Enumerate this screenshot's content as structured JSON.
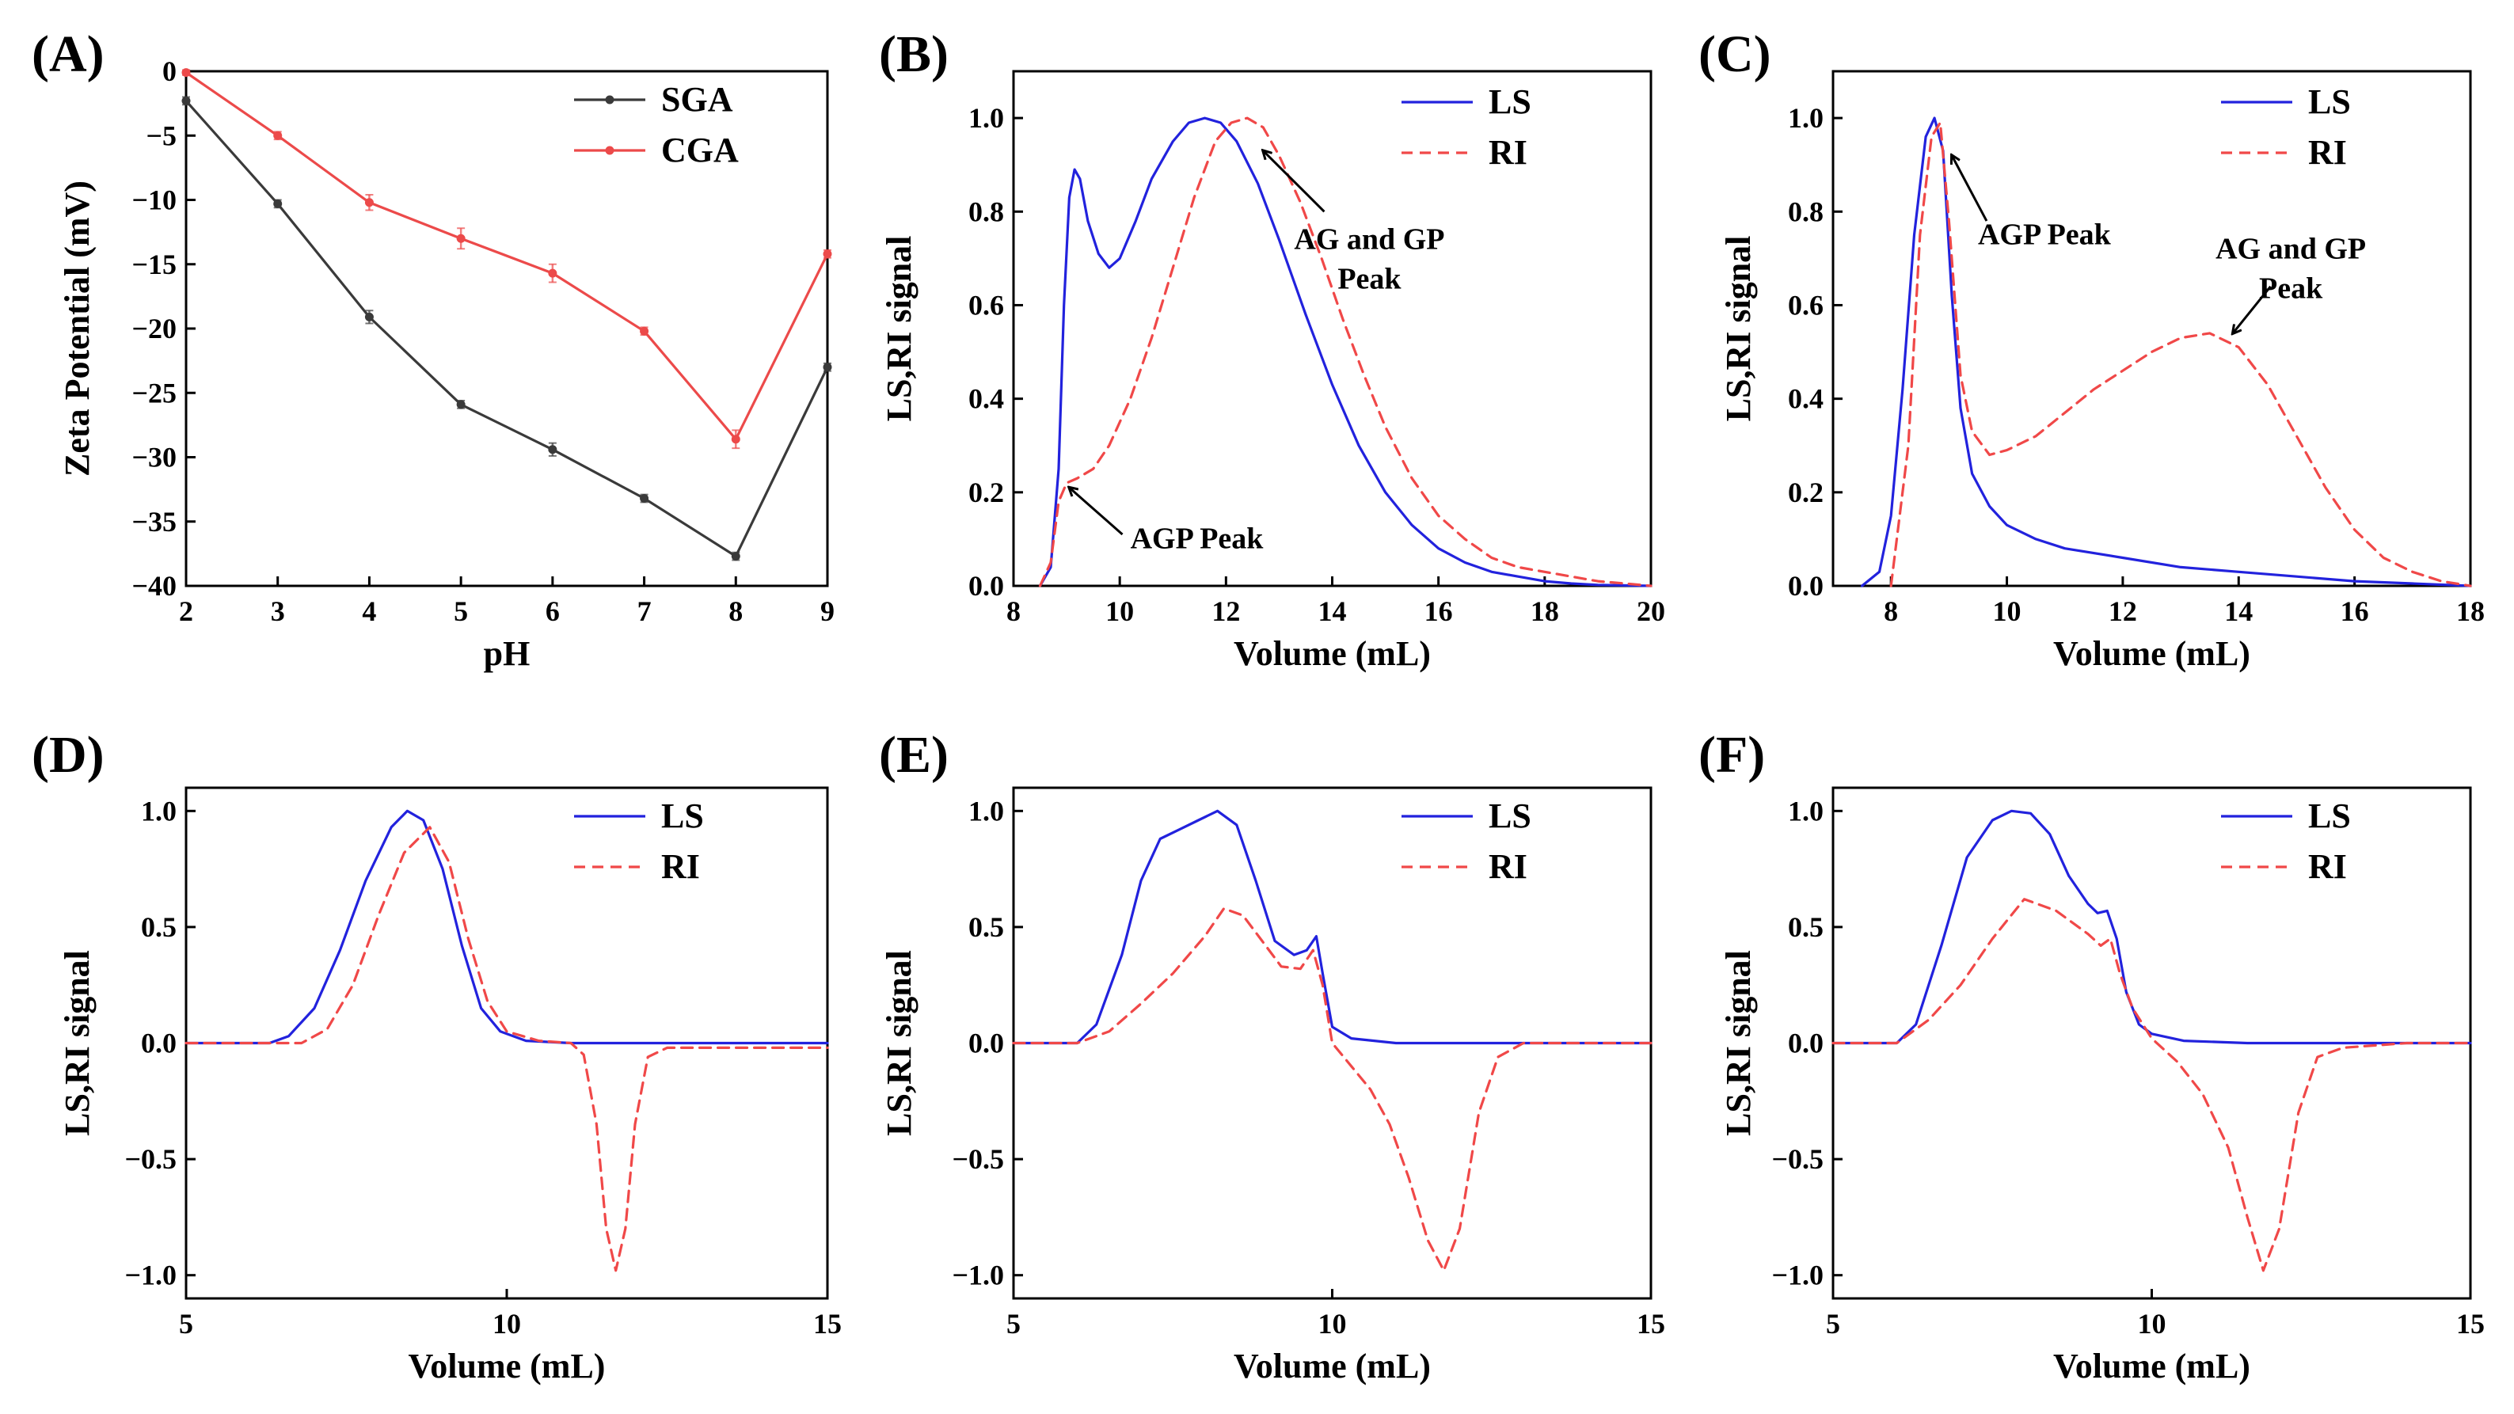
{
  "colors": {
    "sga": "#3a3a3a",
    "cga": "#ec4a4a",
    "ls": "#2222dd",
    "ri": "#f04848",
    "axis": "#000000"
  },
  "chart_data": [
    {
      "id": "A",
      "label": "(A)",
      "type": "line",
      "xlabel": "pH",
      "ylabel": "Zeta Potential (mV)",
      "xlim": [
        2,
        9
      ],
      "ylim": [
        -40,
        0
      ],
      "xticks": [
        2,
        3,
        4,
        5,
        6,
        7,
        8,
        9
      ],
      "yticks": [
        0,
        -5,
        -10,
        -15,
        -20,
        -25,
        -30,
        -35,
        -40
      ],
      "ytick_labels": [
        "0",
        "−5",
        "−10",
        "−15",
        "−20",
        "−25",
        "−30",
        "−35",
        "−40"
      ],
      "legend_position": "top-right",
      "series": [
        {
          "name": "SGA",
          "color": "#3a3a3a",
          "dash": "",
          "markers": true,
          "x": [
            2,
            3,
            4,
            5,
            6,
            7,
            8,
            9
          ],
          "y": [
            -2.3,
            -10.3,
            -19.1,
            -25.9,
            -29.4,
            -33.2,
            -37.7,
            -23.0
          ],
          "err": [
            0.3,
            0.3,
            0.5,
            0.3,
            0.5,
            0.3,
            0.3,
            0.3
          ]
        },
        {
          "name": "CGA",
          "color": "#ec4a4a",
          "dash": "",
          "markers": true,
          "x": [
            2,
            3,
            4,
            5,
            6,
            7,
            8,
            9
          ],
          "y": [
            -0.1,
            -5.0,
            -10.2,
            -13.0,
            -15.7,
            -20.2,
            -28.6,
            -14.2
          ],
          "err": [
            0.2,
            0.3,
            0.6,
            0.8,
            0.7,
            0.3,
            0.7,
            0.3
          ]
        }
      ],
      "annotations": []
    },
    {
      "id": "B",
      "label": "(B)",
      "type": "line",
      "xlabel": "Volume (mL)",
      "ylabel": "LS,RI signal",
      "xlim": [
        8,
        20
      ],
      "ylim": [
        0,
        1.1
      ],
      "xticks": [
        8,
        10,
        12,
        14,
        16,
        18,
        20
      ],
      "yticks": [
        0,
        0.2,
        0.4,
        0.6,
        0.8,
        1.0
      ],
      "ytick_labels": [
        "0.0",
        "0.2",
        "0.4",
        "0.6",
        "0.8",
        "1.0"
      ],
      "legend_position": "top-right",
      "series": [
        {
          "name": "LS",
          "color": "#2222dd",
          "dash": "",
          "x": [
            8.5,
            8.7,
            8.85,
            8.95,
            9.05,
            9.15,
            9.25,
            9.4,
            9.6,
            9.8,
            10.0,
            10.3,
            10.6,
            11.0,
            11.3,
            11.6,
            11.9,
            12.2,
            12.6,
            13.0,
            13.5,
            14.0,
            14.5,
            15.0,
            15.5,
            16.0,
            16.5,
            17.0,
            17.5,
            18.0,
            18.5,
            19.0,
            20.0
          ],
          "y": [
            0.0,
            0.04,
            0.25,
            0.6,
            0.83,
            0.89,
            0.87,
            0.78,
            0.71,
            0.68,
            0.7,
            0.78,
            0.87,
            0.95,
            0.99,
            1.0,
            0.99,
            0.95,
            0.86,
            0.74,
            0.58,
            0.43,
            0.3,
            0.2,
            0.13,
            0.08,
            0.05,
            0.03,
            0.02,
            0.01,
            0.005,
            0.002,
            0.0
          ]
        },
        {
          "name": "RI",
          "color": "#f04848",
          "dash": "14,9",
          "x": [
            8.5,
            8.7,
            8.85,
            9.0,
            9.2,
            9.5,
            9.8,
            10.2,
            10.6,
            11.0,
            11.4,
            11.8,
            12.1,
            12.4,
            12.7,
            13.0,
            13.4,
            13.8,
            14.2,
            14.6,
            15.0,
            15.5,
            16.0,
            16.5,
            17.0,
            17.5,
            18.0,
            18.5,
            19.0,
            19.5,
            20.0
          ],
          "y": [
            0.0,
            0.05,
            0.18,
            0.22,
            0.23,
            0.25,
            0.3,
            0.4,
            0.53,
            0.68,
            0.83,
            0.95,
            0.99,
            1.0,
            0.98,
            0.92,
            0.82,
            0.7,
            0.57,
            0.45,
            0.34,
            0.23,
            0.15,
            0.1,
            0.06,
            0.04,
            0.03,
            0.02,
            0.01,
            0.005,
            0.0
          ]
        }
      ],
      "annotations": [
        {
          "lines": [
            "AG and GP",
            "Peak"
          ],
          "text_at": [
            14.7,
            0.72
          ],
          "anchor": "middle",
          "arrow_from": [
            13.85,
            0.8
          ],
          "arrow_to": [
            12.7,
            0.93
          ]
        },
        {
          "lines": [
            "AGP Peak"
          ],
          "text_at": [
            10.2,
            0.08
          ],
          "anchor": "start",
          "arrow_from": [
            10.05,
            0.11
          ],
          "arrow_to": [
            9.05,
            0.21
          ]
        }
      ]
    },
    {
      "id": "C",
      "label": "(C)",
      "type": "line",
      "xlabel": "Volume (mL)",
      "ylabel": "LS,RI signal",
      "xlim": [
        7,
        18
      ],
      "ylim": [
        0,
        1.1
      ],
      "xticks": [
        8,
        10,
        12,
        14,
        16,
        18
      ],
      "yticks": [
        0,
        0.2,
        0.4,
        0.6,
        0.8,
        1.0
      ],
      "ytick_labels": [
        "0.0",
        "0.2",
        "0.4",
        "0.6",
        "0.8",
        "1.0"
      ],
      "legend_position": "top-right",
      "series": [
        {
          "name": "LS",
          "color": "#2222dd",
          "dash": "",
          "x": [
            7.5,
            7.8,
            8.0,
            8.2,
            8.4,
            8.6,
            8.75,
            8.9,
            9.05,
            9.2,
            9.4,
            9.7,
            10.0,
            10.5,
            11.0,
            12.0,
            13.0,
            14.0,
            15.0,
            16.0,
            17.0,
            18.0
          ],
          "y": [
            0.0,
            0.03,
            0.15,
            0.42,
            0.75,
            0.96,
            1.0,
            0.93,
            0.62,
            0.38,
            0.24,
            0.17,
            0.13,
            0.1,
            0.08,
            0.06,
            0.04,
            0.03,
            0.02,
            0.01,
            0.005,
            0.0
          ]
        },
        {
          "name": "RI",
          "color": "#f04848",
          "dash": "14,9",
          "x": [
            8.0,
            8.3,
            8.5,
            8.7,
            8.85,
            9.0,
            9.2,
            9.4,
            9.7,
            10.0,
            10.5,
            11.0,
            11.5,
            12.0,
            12.5,
            13.0,
            13.5,
            14.0,
            14.5,
            15.0,
            15.5,
            16.0,
            16.5,
            17.0,
            17.5,
            18.0
          ],
          "y": [
            0.0,
            0.3,
            0.75,
            0.96,
            0.99,
            0.78,
            0.45,
            0.33,
            0.28,
            0.29,
            0.32,
            0.37,
            0.42,
            0.46,
            0.5,
            0.53,
            0.54,
            0.51,
            0.43,
            0.32,
            0.21,
            0.12,
            0.06,
            0.03,
            0.01,
            0.0
          ]
        }
      ],
      "annotations": [
        {
          "lines": [
            "AGP Peak"
          ],
          "text_at": [
            9.5,
            0.73
          ],
          "anchor": "start",
          "arrow_from": [
            9.65,
            0.78
          ],
          "arrow_to": [
            9.05,
            0.92
          ]
        },
        {
          "lines": [
            "AG and GP",
            "Peak"
          ],
          "text_at": [
            14.9,
            0.7
          ],
          "anchor": "middle",
          "arrow_from": [
            14.55,
            0.64
          ],
          "arrow_to": [
            13.9,
            0.54
          ]
        }
      ]
    },
    {
      "id": "D",
      "label": "(D)",
      "type": "line",
      "xlabel": "Volume (mL)",
      "ylabel": "LS,RI signal",
      "xlim": [
        5,
        15
      ],
      "ylim": [
        -1.1,
        1.1
      ],
      "xticks": [
        5,
        10,
        15
      ],
      "yticks": [
        1.0,
        0.5,
        0.0,
        -0.5,
        -1.0
      ],
      "ytick_labels": [
        "1.0",
        "0.5",
        "0.0",
        "−0.5",
        "−1.0"
      ],
      "legend_position": "top-right",
      "series": [
        {
          "name": "LS",
          "color": "#2222dd",
          "dash": "",
          "x": [
            5.0,
            6.3,
            6.6,
            7.0,
            7.4,
            7.8,
            8.2,
            8.45,
            8.7,
            9.0,
            9.3,
            9.6,
            9.9,
            10.3,
            11.0,
            15.0
          ],
          "y": [
            0.0,
            0.0,
            0.03,
            0.15,
            0.4,
            0.7,
            0.93,
            1.0,
            0.96,
            0.75,
            0.42,
            0.15,
            0.05,
            0.01,
            0.0,
            0.0
          ]
        },
        {
          "name": "RI",
          "color": "#f04848",
          "dash": "14,9",
          "x": [
            5.0,
            6.8,
            7.2,
            7.6,
            8.0,
            8.4,
            8.8,
            9.1,
            9.4,
            9.7,
            10.0,
            10.5,
            11.0,
            11.2,
            11.4,
            11.55,
            11.7,
            11.85,
            12.0,
            12.2,
            12.5,
            13.0,
            15.0
          ],
          "y": [
            0.0,
            0.0,
            0.06,
            0.25,
            0.55,
            0.82,
            0.93,
            0.78,
            0.45,
            0.18,
            0.05,
            0.01,
            0.0,
            -0.05,
            -0.35,
            -0.8,
            -0.98,
            -0.8,
            -0.35,
            -0.06,
            -0.02,
            -0.02,
            -0.02
          ]
        }
      ],
      "annotations": []
    },
    {
      "id": "E",
      "label": "(E)",
      "type": "line",
      "xlabel": "Volume (mL)",
      "ylabel": "LS,RI signal",
      "xlim": [
        5,
        15
      ],
      "ylim": [
        -1.1,
        1.1
      ],
      "xticks": [
        5,
        10,
        15
      ],
      "yticks": [
        1.0,
        0.5,
        0.0,
        -0.5,
        -1.0
      ],
      "ytick_labels": [
        "1.0",
        "0.5",
        "0.0",
        "−0.5",
        "−1.0"
      ],
      "legend_position": "top-right",
      "series": [
        {
          "name": "LS",
          "color": "#2222dd",
          "dash": "",
          "x": [
            5.0,
            6.0,
            6.3,
            6.7,
            7.0,
            7.3,
            7.6,
            7.9,
            8.2,
            8.5,
            8.8,
            9.1,
            9.4,
            9.6,
            9.75,
            9.85,
            10.0,
            10.3,
            11.0,
            15.0
          ],
          "y": [
            0.0,
            0.0,
            0.08,
            0.38,
            0.7,
            0.88,
            0.92,
            0.96,
            1.0,
            0.94,
            0.7,
            0.44,
            0.38,
            0.4,
            0.46,
            0.3,
            0.07,
            0.02,
            0.0,
            0.0
          ]
        },
        {
          "name": "RI",
          "color": "#f04848",
          "dash": "14,9",
          "x": [
            5.0,
            6.0,
            6.5,
            7.0,
            7.5,
            8.0,
            8.3,
            8.6,
            8.9,
            9.2,
            9.5,
            9.7,
            9.85,
            10.0,
            10.3,
            10.6,
            10.9,
            11.2,
            11.5,
            11.75,
            12.0,
            12.3,
            12.6,
            13.0,
            14.0,
            15.0
          ],
          "y": [
            0.0,
            0.0,
            0.05,
            0.17,
            0.3,
            0.46,
            0.58,
            0.55,
            0.44,
            0.33,
            0.32,
            0.4,
            0.25,
            0.0,
            -0.1,
            -0.2,
            -0.35,
            -0.58,
            -0.85,
            -0.98,
            -0.8,
            -0.3,
            -0.06,
            0.0,
            0.0,
            0.0
          ]
        }
      ],
      "annotations": []
    },
    {
      "id": "F",
      "label": "(F)",
      "type": "line",
      "xlabel": "Volume (mL)",
      "ylabel": "LS,RI signal",
      "xlim": [
        5,
        15
      ],
      "ylim": [
        -1.1,
        1.1
      ],
      "xticks": [
        5,
        10,
        15
      ],
      "yticks": [
        1.0,
        0.5,
        0.0,
        -0.5,
        -1.0
      ],
      "ytick_labels": [
        "1.0",
        "0.5",
        "0.0",
        "−0.5",
        "−1.0"
      ],
      "legend_position": "top-right",
      "series": [
        {
          "name": "LS",
          "color": "#2222dd",
          "dash": "",
          "x": [
            5.0,
            6.0,
            6.3,
            6.7,
            7.1,
            7.5,
            7.8,
            8.1,
            8.4,
            8.7,
            9.0,
            9.15,
            9.3,
            9.45,
            9.6,
            9.8,
            10.0,
            10.5,
            11.5,
            15.0
          ],
          "y": [
            0.0,
            0.0,
            0.08,
            0.42,
            0.8,
            0.96,
            1.0,
            0.99,
            0.9,
            0.72,
            0.6,
            0.56,
            0.57,
            0.45,
            0.22,
            0.08,
            0.04,
            0.01,
            0.0,
            0.0
          ]
        },
        {
          "name": "RI",
          "color": "#f04848",
          "dash": "14,9",
          "x": [
            5.0,
            6.0,
            6.5,
            7.0,
            7.5,
            8.0,
            8.5,
            9.0,
            9.2,
            9.35,
            9.5,
            9.7,
            10.0,
            10.4,
            10.8,
            11.2,
            11.5,
            11.75,
            12.0,
            12.3,
            12.6,
            13.0,
            14.0,
            15.0
          ],
          "y": [
            0.0,
            0.0,
            0.1,
            0.25,
            0.45,
            0.62,
            0.57,
            0.47,
            0.42,
            0.45,
            0.3,
            0.15,
            0.02,
            -0.08,
            -0.22,
            -0.45,
            -0.75,
            -0.98,
            -0.8,
            -0.3,
            -0.06,
            -0.02,
            0.0,
            0.0
          ]
        }
      ],
      "annotations": []
    }
  ]
}
